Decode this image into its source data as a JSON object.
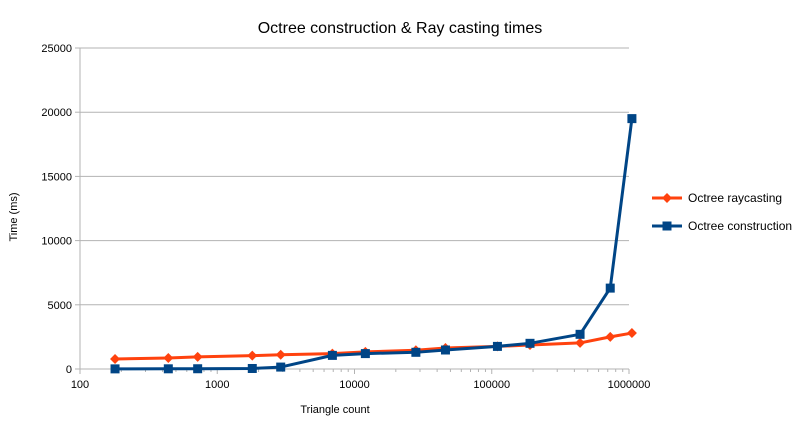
{
  "chart_data": {
    "type": "line",
    "title": "Octree construction & Ray casting times",
    "xlabel": "Triangle count",
    "ylabel": "Time (ms)",
    "xscale": "log",
    "xlim": [
      100,
      1000000
    ],
    "ylim": [
      0,
      25000
    ],
    "x_ticks": [
      "100",
      "1000",
      "10000",
      "100000",
      "1000000"
    ],
    "y_ticks": [
      "0",
      "5000",
      "10000",
      "15000",
      "20000",
      "25000"
    ],
    "grid": "horizontal",
    "legend_position": "right",
    "x": [
      180,
      440,
      720,
      1800,
      2900,
      6900,
      12000,
      28000,
      46000,
      110000,
      190000,
      440000,
      730000,
      1050000
    ],
    "series": [
      {
        "name": "Octree raycasting",
        "color": "#ff420e",
        "marker": "diamond",
        "values": [
          780,
          860,
          940,
          1040,
          1110,
          1200,
          1330,
          1460,
          1640,
          1760,
          1870,
          2030,
          2500,
          2800
        ]
      },
      {
        "name": "Octree construction",
        "color": "#004586",
        "marker": "square",
        "values": [
          10,
          15,
          20,
          40,
          150,
          1060,
          1200,
          1300,
          1480,
          1760,
          2000,
          2700,
          6300,
          19500
        ]
      }
    ]
  }
}
